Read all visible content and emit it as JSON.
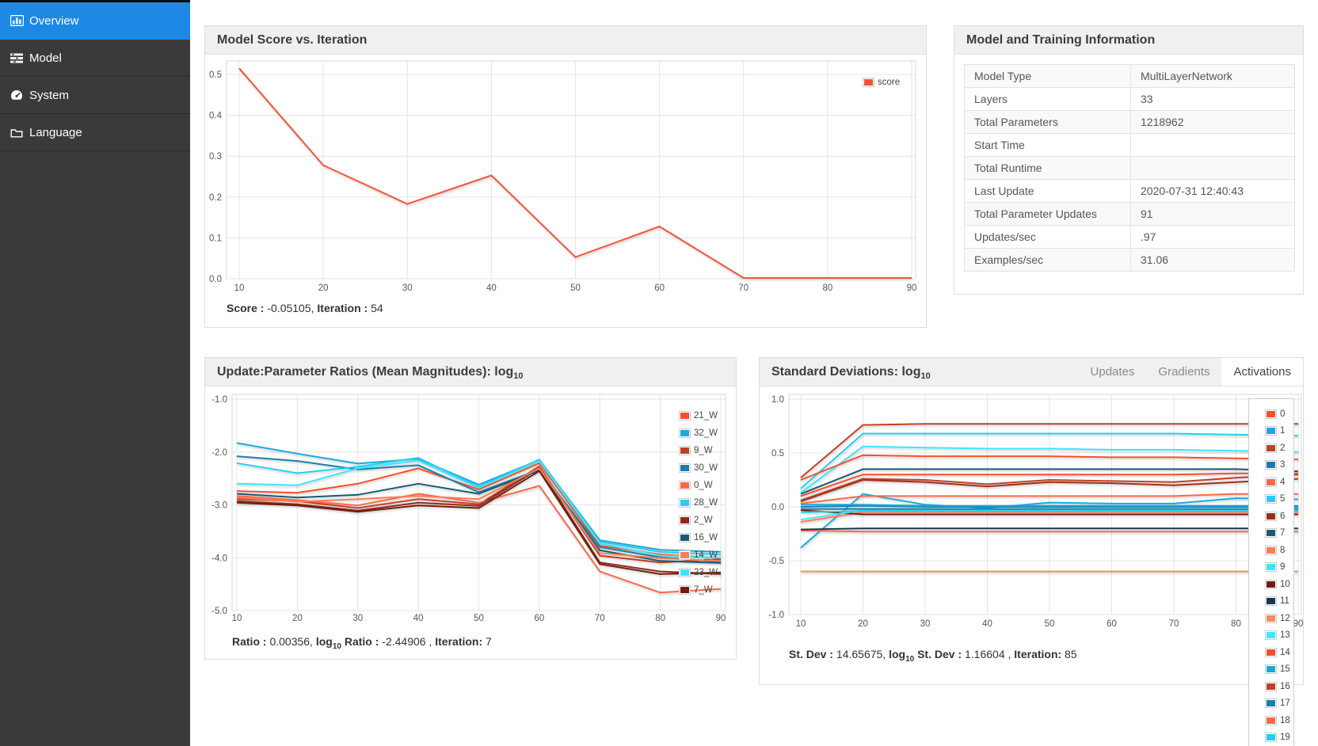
{
  "sidebar": {
    "items": [
      {
        "label": "Overview",
        "icon": "bar-chart-icon",
        "active": true
      },
      {
        "label": "Model",
        "icon": "tasks-icon",
        "active": false
      },
      {
        "label": "System",
        "icon": "dashboard-icon",
        "active": false
      },
      {
        "label": "Language",
        "icon": "folder-icon",
        "active": false
      }
    ]
  },
  "score_panel": {
    "title": "Model Score vs. Iteration",
    "status": {
      "label_score": "Score :",
      "value_score": " -0.05105, ",
      "label_iteration": "Iteration :",
      "value_iteration": " 54"
    },
    "chart_data": {
      "type": "line",
      "title": "Model Score vs. Iteration",
      "x": [
        10,
        20,
        30,
        40,
        50,
        60,
        70,
        80,
        90
      ],
      "ylim": [
        0,
        0.533
      ],
      "yticks": [
        {
          "v": 0.0,
          "label": "0.0"
        },
        {
          "v": 0.1,
          "label": "0.1"
        },
        {
          "v": 0.2,
          "label": "0.2"
        },
        {
          "v": 0.3,
          "label": "0.3"
        },
        {
          "v": 0.4,
          "label": "0.4"
        },
        {
          "v": 0.5,
          "label": "0.5"
        }
      ],
      "grid": true,
      "legend_position": "top-right",
      "series": [
        {
          "name": "score",
          "color": "#f4543a",
          "values": [
            0.515,
            0.278,
            0.183,
            0.253,
            0.053,
            0.128,
            0.002,
            0.002,
            0.002
          ]
        }
      ]
    }
  },
  "info_panel": {
    "title": "Model and Training Information",
    "rows": [
      {
        "label": "Model Type",
        "value": "MultiLayerNetwork"
      },
      {
        "label": "Layers",
        "value": "33"
      },
      {
        "label": "Total Parameters",
        "value": "1218962"
      },
      {
        "label": "Start Time",
        "value": ""
      },
      {
        "label": "Total Runtime",
        "value": ""
      },
      {
        "label": "Last Update",
        "value": "2020-07-31 12:40:43"
      },
      {
        "label": "Total Parameter Updates",
        "value": "91"
      },
      {
        "label": "Updates/sec",
        "value": ".97"
      },
      {
        "label": "Examples/sec",
        "value": "31.06"
      }
    ]
  },
  "ratios_panel": {
    "title_main": "Update:Parameter Ratios (Mean Magnitudes): log",
    "title_sub": "10",
    "status": {
      "label_ratio": "Ratio :",
      "value_ratio": " 0.00356, ",
      "label_log": "log",
      "label_log_sub": "10",
      "label_log2": " Ratio :",
      "value_log": " -2.44906 , ",
      "label_iteration": "Iteration:",
      "value_iteration": " 7"
    },
    "chart_data": {
      "type": "line",
      "x": [
        10,
        20,
        30,
        40,
        50,
        60,
        70,
        80,
        90
      ],
      "ylim": [
        -5.0,
        -1.0
      ],
      "yticks": [
        {
          "v": -1.0,
          "label": "-1.0"
        },
        {
          "v": -2.0,
          "label": "-2.0"
        },
        {
          "v": -3.0,
          "label": "-3.0"
        },
        {
          "v": -4.0,
          "label": "-4.0"
        },
        {
          "v": -5.0,
          "label": "-5.0"
        }
      ],
      "grid": true,
      "legend_position": "right",
      "series": [
        {
          "name": "21_W",
          "color": "#f4502a",
          "values": [
            -2.74,
            -2.77,
            -2.6,
            -2.31,
            -2.71,
            -2.21,
            -3.77,
            -3.94,
            -4.01
          ]
        },
        {
          "name": "32_W",
          "color": "#1da8dc",
          "values": [
            -1.83,
            -2.03,
            -2.22,
            -2.13,
            -2.62,
            -2.15,
            -3.67,
            -3.85,
            -3.89
          ]
        },
        {
          "name": "9_W",
          "color": "#bf4028",
          "values": [
            -2.89,
            -2.93,
            -3.06,
            -2.89,
            -2.99,
            -2.27,
            -3.96,
            -4.09,
            -4.03
          ]
        },
        {
          "name": "30_W",
          "color": "#1b7ea8",
          "values": [
            -2.08,
            -2.17,
            -2.33,
            -2.25,
            -2.76,
            -2.33,
            -3.8,
            -3.99,
            -4.08
          ]
        },
        {
          "name": "0_W",
          "color": "#fa6848",
          "values": [
            -2.83,
            -2.91,
            -3.01,
            -2.79,
            -2.96,
            -2.64,
            -4.26,
            -4.66,
            -4.59
          ]
        },
        {
          "name": "28_W",
          "color": "#28cdf0",
          "values": [
            -2.21,
            -2.4,
            -2.28,
            -2.11,
            -2.66,
            -2.14,
            -3.7,
            -3.89,
            -3.94
          ]
        },
        {
          "name": "2_W",
          "color": "#8e2a1a",
          "values": [
            -2.93,
            -2.99,
            -3.11,
            -2.96,
            -3.02,
            -2.31,
            -4.09,
            -4.26,
            -4.31
          ]
        },
        {
          "name": "16_W",
          "color": "#195a74",
          "values": [
            -2.79,
            -2.86,
            -2.81,
            -2.6,
            -2.79,
            -2.35,
            -3.86,
            -4.06,
            -4.1
          ]
        },
        {
          "name": "14_W",
          "color": "#fa7d55",
          "values": [
            -2.86,
            -2.94,
            -2.89,
            -2.83,
            -2.89,
            -2.31,
            -3.91,
            -4.01,
            -4.06
          ]
        },
        {
          "name": "23_W",
          "color": "#3fe4fa",
          "values": [
            -2.6,
            -2.63,
            -2.31,
            -2.16,
            -2.68,
            -2.17,
            -3.73,
            -3.96,
            -4.0
          ]
        },
        {
          "name": "7_W",
          "color": "#701d10",
          "values": [
            -2.96,
            -3.01,
            -3.13,
            -3.01,
            -3.06,
            -2.36,
            -4.12,
            -4.31,
            -4.28
          ]
        }
      ]
    }
  },
  "stdev_panel": {
    "title_main": "Standard Deviations: log",
    "title_sub": "10",
    "tabs": [
      {
        "label": "Updates",
        "active": false
      },
      {
        "label": "Gradients",
        "active": false
      },
      {
        "label": "Activations",
        "active": true
      }
    ],
    "status": {
      "label_stdev": "St. Dev :",
      "value_stdev": " 14.65675, ",
      "label_log": "log",
      "label_log_sub": "10",
      "label_log2": " St. Dev :",
      "value_log": " 1.16604 , ",
      "label_iteration": "Iteration:",
      "value_iteration": " 85"
    },
    "chart_data": {
      "type": "line",
      "x": [
        10,
        20,
        30,
        40,
        50,
        60,
        70,
        80,
        90
      ],
      "ylim": [
        -1.0,
        1.0
      ],
      "yticks": [
        {
          "v": 1.0,
          "label": "1.0"
        },
        {
          "v": 0.5,
          "label": "0.5"
        },
        {
          "v": 0.0,
          "label": "0.0"
        },
        {
          "v": -0.5,
          "label": "-0.5"
        },
        {
          "v": -1.0,
          "label": "-1.0"
        }
      ],
      "grid": true,
      "legend_position": "right-outside",
      "series": [
        {
          "name": "0",
          "color": "#f4502a",
          "values": [
            0.1,
            0.3,
            0.3,
            0.3,
            0.3,
            0.3,
            0.3,
            0.31,
            0.31
          ]
        },
        {
          "name": "1",
          "color": "#1da8dc",
          "values": [
            -0.38,
            0.12,
            0.02,
            -0.01,
            0.04,
            0.03,
            0.03,
            0.08,
            0.07
          ]
        },
        {
          "name": "2",
          "color": "#bf4028",
          "values": [
            0.27,
            0.76,
            0.77,
            0.77,
            0.77,
            0.77,
            0.77,
            0.77,
            0.77
          ]
        },
        {
          "name": "3",
          "color": "#1b7ea8",
          "values": [
            0.0,
            0.01,
            0.0,
            0.0,
            0.0,
            0.0,
            0.0,
            0.0,
            0.0
          ]
        },
        {
          "name": "4",
          "color": "#fa6848",
          "values": [
            -0.22,
            -0.23,
            -0.23,
            -0.23,
            -0.23,
            -0.23,
            -0.23,
            -0.23,
            -0.23
          ]
        },
        {
          "name": "5",
          "color": "#28cdf0",
          "values": [
            0.17,
            0.68,
            0.68,
            0.68,
            0.68,
            0.68,
            0.68,
            0.67,
            0.66
          ]
        },
        {
          "name": "6",
          "color": "#9c2e1c",
          "values": [
            0.05,
            0.25,
            0.23,
            0.19,
            0.23,
            0.22,
            0.2,
            0.23,
            0.26
          ]
        },
        {
          "name": "7",
          "color": "#195a74",
          "values": [
            0.12,
            0.35,
            0.35,
            0.35,
            0.35,
            0.35,
            0.35,
            0.35,
            0.33
          ]
        },
        {
          "name": "8",
          "color": "#fa7d55",
          "values": [
            -0.14,
            -0.05,
            -0.05,
            -0.05,
            -0.05,
            -0.05,
            -0.05,
            -0.05,
            -0.05
          ]
        },
        {
          "name": "9",
          "color": "#3fe4fa",
          "values": [
            0.13,
            0.56,
            0.55,
            0.54,
            0.54,
            0.53,
            0.53,
            0.52,
            0.51
          ]
        },
        {
          "name": "10",
          "color": "#701d10",
          "values": [
            -0.03,
            -0.07,
            -0.07,
            -0.07,
            -0.07,
            -0.07,
            -0.07,
            -0.07,
            -0.07
          ]
        },
        {
          "name": "11",
          "color": "#0e3d50",
          "values": [
            -0.21,
            -0.2,
            -0.2,
            -0.2,
            -0.2,
            -0.2,
            -0.2,
            -0.2,
            -0.2
          ]
        },
        {
          "name": "12",
          "color": "#fa8a64",
          "values": [
            -0.6,
            -0.6,
            -0.6,
            -0.6,
            -0.6,
            -0.6,
            -0.6,
            -0.6,
            -0.6
          ]
        },
        {
          "name": "13",
          "color": "#45e6fc",
          "values": [
            -0.12,
            -0.03,
            -0.03,
            -0.03,
            -0.03,
            -0.03,
            -0.03,
            -0.03,
            -0.03
          ]
        },
        {
          "name": "14",
          "color": "#f4502a",
          "values": [
            0.25,
            0.48,
            0.47,
            0.47,
            0.47,
            0.46,
            0.46,
            0.45,
            0.44
          ]
        },
        {
          "name": "15",
          "color": "#1da8dc",
          "values": [
            0.02,
            0.02,
            0.01,
            0.01,
            0.01,
            0.01,
            0.01,
            0.01,
            0.01
          ]
        },
        {
          "name": "16",
          "color": "#bf4028",
          "values": [
            0.06,
            0.26,
            0.25,
            0.21,
            0.25,
            0.24,
            0.23,
            0.27,
            0.3
          ]
        },
        {
          "name": "17",
          "color": "#1b7ea8",
          "values": [
            -0.02,
            -0.02,
            -0.02,
            -0.02,
            -0.02,
            -0.02,
            -0.02,
            -0.02,
            -0.02
          ]
        },
        {
          "name": "18",
          "color": "#fa6848",
          "values": [
            0.03,
            0.1,
            0.1,
            0.1,
            0.1,
            0.1,
            0.1,
            0.12,
            0.12
          ]
        },
        {
          "name": "19",
          "color": "#28cdf0",
          "values": [
            -0.05,
            -0.04,
            -0.04,
            -0.04,
            -0.04,
            -0.04,
            -0.04,
            -0.04,
            -0.04
          ]
        }
      ]
    }
  }
}
